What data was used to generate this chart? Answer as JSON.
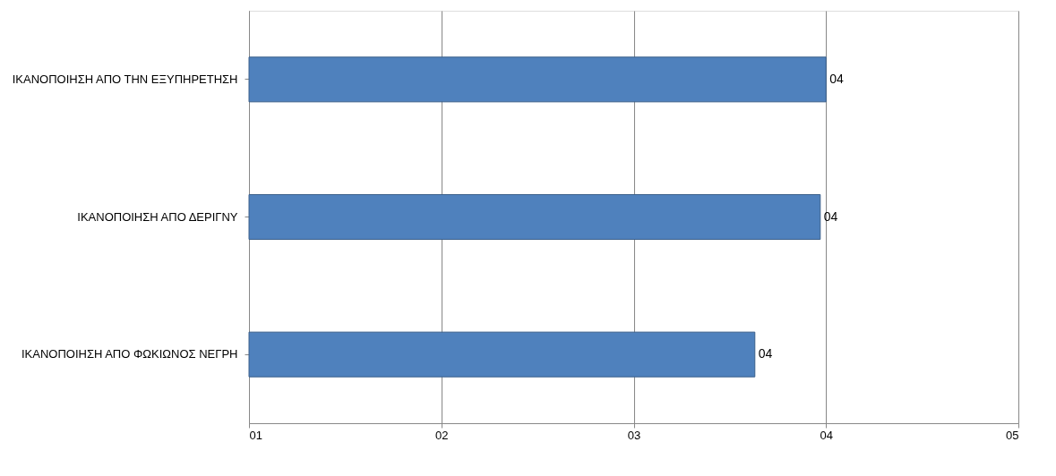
{
  "chart_data": {
    "type": "bar",
    "orientation": "horizontal",
    "categories": [
      "ΙΚΑΝΟΠΟΙΗΣΗ ΑΠΟ ΤΗΝ ΕΞΥΠΗΡΕΤΗΣΗ",
      "ΙΚΑΝΟΠΟΙΗΣΗ ΑΠΟ ΔΕΡΙΓΝΥ",
      "ΙΚΑΝΟΠΟΙΗΣΗ ΑΠΟ ΦΩΚΙΩΝΟΣ ΝΕΓΡΗ"
    ],
    "values": [
      4.0,
      3.97,
      3.63
    ],
    "value_labels": [
      "04",
      "04",
      "04"
    ],
    "color": "#4f81bd",
    "xlim": [
      1,
      5
    ],
    "xticks": [
      {
        "value": 1,
        "label": "01"
      },
      {
        "value": 2,
        "label": "02"
      },
      {
        "value": 3,
        "label": "03"
      },
      {
        "value": 4,
        "label": "04"
      },
      {
        "value": 5,
        "label": "05"
      }
    ],
    "grid": "x"
  }
}
